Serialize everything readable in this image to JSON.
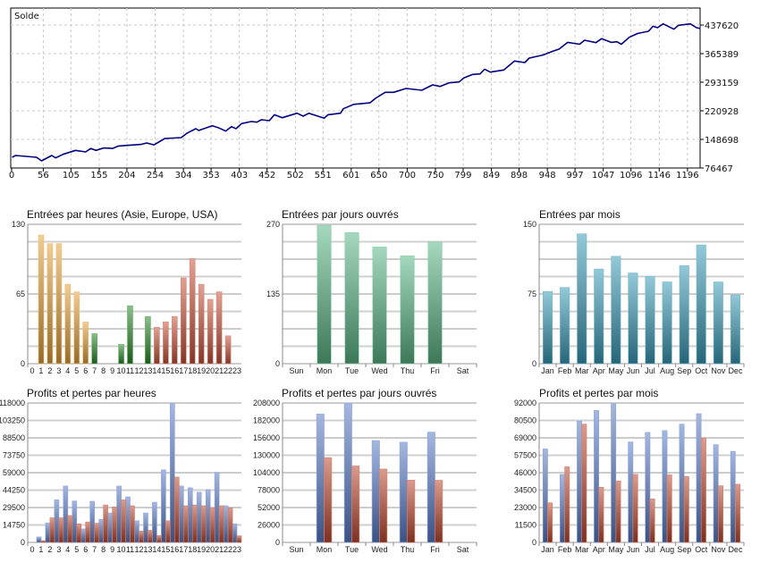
{
  "chart_data": [
    {
      "type": "line",
      "title": "Solde",
      "xlim": [
        0,
        1219
      ],
      "ylim": [
        76467,
        480500
      ],
      "x_ticks": [
        "0",
        "56",
        "105",
        "155",
        "204",
        "254",
        "304",
        "353",
        "403",
        "452",
        "502",
        "551",
        "601",
        "650",
        "700",
        "750",
        "799",
        "849",
        "898",
        "948",
        "997",
        "1047",
        "1096",
        "1146",
        "1196"
      ],
      "y_ticks": [
        "76467",
        "148698",
        "220928",
        "293159",
        "365389",
        "437620"
      ],
      "color": "#000080",
      "x": [
        1,
        7,
        44,
        53,
        71,
        78,
        91,
        113,
        131,
        140,
        149,
        163,
        179,
        189,
        229,
        239,
        252,
        271,
        300,
        310,
        326,
        331,
        355,
        365,
        379,
        389,
        397,
        407,
        424,
        434,
        442,
        456,
        465,
        479,
        505,
        516,
        526,
        553,
        560,
        582,
        587,
        605,
        634,
        644,
        661,
        676,
        698,
        726,
        745,
        758,
        774,
        792,
        800,
        816,
        829,
        837,
        847,
        871,
        890,
        908,
        916,
        940,
        958,
        969,
        984,
        1005,
        1014,
        1034,
        1044,
        1061,
        1071,
        1079,
        1093,
        1108,
        1127,
        1135,
        1143,
        1153,
        1172,
        1180,
        1201,
        1212,
        1219
      ],
      "y": [
        103500,
        108100,
        103500,
        94500,
        108100,
        102000,
        111000,
        121000,
        117000,
        126000,
        121000,
        127000,
        126000,
        132000,
        136000,
        139700,
        135000,
        151000,
        153200,
        164000,
        175800,
        171300,
        183300,
        178800,
        169700,
        181000,
        175800,
        188600,
        193800,
        192300,
        198300,
        196100,
        211000,
        203500,
        214800,
        207400,
        214800,
        202100,
        211000,
        214800,
        226100,
        237200,
        241100,
        252500,
        267700,
        267700,
        277400,
        272800,
        286400,
        282500,
        291500,
        293900,
        303700,
        312800,
        314200,
        326200,
        318600,
        324000,
        346700,
        342700,
        354100,
        361700,
        371500,
        376800,
        393900,
        389000,
        399300,
        393200,
        403100,
        393900,
        395300,
        389000,
        406700,
        416500,
        421800,
        434500,
        430900,
        440600,
        427000,
        436900,
        440600,
        430900,
        428600
      ]
    },
    {
      "type": "bar",
      "title": "Entrées par heures (Asie, Europe, USA)",
      "categories": [
        "0",
        "1",
        "2",
        "3",
        "4",
        "5",
        "6",
        "7",
        "8",
        "9",
        "10",
        "11",
        "12",
        "13",
        "14",
        "15",
        "16",
        "17",
        "18",
        "19",
        "20",
        "21",
        "22",
        "23"
      ],
      "ylim": [
        0,
        130
      ],
      "y_ticks": [
        "0",
        "65",
        "130"
      ],
      "series": [
        {
          "name": "Entrées",
          "values": [
            0,
            120,
            112,
            112,
            74,
            67,
            39,
            28,
            0,
            0,
            18,
            54,
            0,
            44,
            34,
            39,
            44,
            80,
            98,
            74,
            60,
            67,
            26,
            0
          ]
        }
      ],
      "bar_colors": [
        "#e8a33a",
        "#e8a33a",
        "#e8a33a",
        "#e8a33a",
        "#e8a33a",
        "#e8a33a",
        "#e8a33a",
        "#2a8a2a",
        "#2a8a2a",
        "#2a8a2a",
        "#2a8a2a",
        "#2a8a2a",
        "#2a8a2a",
        "#2a8a2a",
        "#c8553c",
        "#c8553c",
        "#c8553c",
        "#c8553c",
        "#c8553c",
        "#c8553c",
        "#c8553c",
        "#c8553c",
        "#c8553c",
        "#c8553c"
      ]
    },
    {
      "type": "bar",
      "title": "Entrées par jours ouvrés",
      "categories": [
        "Sun",
        "Mon",
        "Tue",
        "Wed",
        "Thu",
        "Fri",
        "Sat"
      ],
      "ylim": [
        0,
        270
      ],
      "y_ticks": [
        "0",
        "135",
        "270"
      ],
      "series": [
        {
          "name": "Entrées",
          "values": [
            0,
            268,
            254,
            226,
            209,
            236,
            0
          ],
          "color": "#5cb888"
        }
      ]
    },
    {
      "type": "bar",
      "title": "Entrées par mois",
      "categories": [
        "Jan",
        "Feb",
        "Mar",
        "Apr",
        "May",
        "Jun",
        "Jul",
        "Aug",
        "Sep",
        "Oct",
        "Nov",
        "Dec"
      ],
      "ylim": [
        0,
        150
      ],
      "y_ticks": [
        "0",
        "75",
        "150"
      ],
      "series": [
        {
          "name": "Entrées",
          "values": [
            77.7,
            82,
            139.7,
            101.8,
            115.6,
            97.6,
            93.8,
            88,
            105.6,
            127.8,
            88,
            73.9
          ],
          "color": "#3a9cb8"
        }
      ]
    },
    {
      "type": "bar",
      "title": "Profits et pertes par heures",
      "categories": [
        "0",
        "1",
        "2",
        "3",
        "4",
        "5",
        "6",
        "7",
        "8",
        "9",
        "10",
        "11",
        "12",
        "13",
        "14",
        "15",
        "16",
        "17",
        "18",
        "19",
        "20",
        "21",
        "22",
        "23"
      ],
      "ylim": [
        0,
        118000
      ],
      "y_ticks": [
        "0",
        "14750",
        "29500",
        "44250",
        "59000",
        "73750",
        "88500",
        "103250",
        "118000"
      ],
      "series": [
        {
          "name": "Profits",
          "color": "#5a7cc8",
          "values": [
            0,
            4600,
            16500,
            36000,
            47700,
            35000,
            11400,
            34800,
            19500,
            24900,
            47700,
            38600,
            18300,
            24900,
            34000,
            61400,
            118000,
            47700,
            46200,
            42400,
            44700,
            59400,
            31000,
            15700
          ]
        },
        {
          "name": "Pertes",
          "color": "#c04a30",
          "values": [
            0,
            1500,
            20800,
            20800,
            22800,
            15700,
            17300,
            16200,
            31700,
            30000,
            36000,
            31000,
            9600,
            10200,
            5800,
            18300,
            55300,
            31000,
            31700,
            31000,
            29400,
            31000,
            29200,
            5600
          ]
        }
      ]
    },
    {
      "type": "bar",
      "title": "Profits et pertes par jours ouvrés",
      "categories": [
        "Sun",
        "Mon",
        "Tue",
        "Wed",
        "Thu",
        "Fri",
        "Sat"
      ],
      "ylim": [
        0,
        208000
      ],
      "y_ticks": [
        "0",
        "26000",
        "52000",
        "78000",
        "104000",
        "130000",
        "156000",
        "182000",
        "208000"
      ],
      "series": [
        {
          "name": "Profits",
          "color": "#5a7cc8",
          "values": [
            0,
            191500,
            208000,
            152000,
            149400,
            164600,
            0
          ]
        },
        {
          "name": "Pertes",
          "color": "#c04a30",
          "values": [
            0,
            126500,
            114000,
            109500,
            93000,
            92600,
            0
          ]
        }
      ]
    },
    {
      "type": "bar",
      "title": "Profits et pertes par mois",
      "categories": [
        "Jan",
        "Feb",
        "Mar",
        "Apr",
        "May",
        "Jun",
        "Jul",
        "Aug",
        "Sep",
        "Oct",
        "Nov",
        "Dec"
      ],
      "ylim": [
        0,
        92000
      ],
      "y_ticks": [
        "0",
        "11500",
        "23000",
        "34500",
        "46000",
        "57500",
        "69000",
        "80500",
        "92000"
      ],
      "series": [
        {
          "name": "Profits",
          "color": "#5a7cc8",
          "values": [
            61700,
            44900,
            80100,
            87100,
            92000,
            66300,
            72600,
            73800,
            78000,
            84900,
            64500,
            60100
          ]
        },
        {
          "name": "Pertes",
          "color": "#c04a30",
          "values": [
            26100,
            49900,
            78000,
            36400,
            40600,
            44900,
            28700,
            44500,
            43500,
            68900,
            37400,
            38400
          ]
        }
      ]
    }
  ]
}
